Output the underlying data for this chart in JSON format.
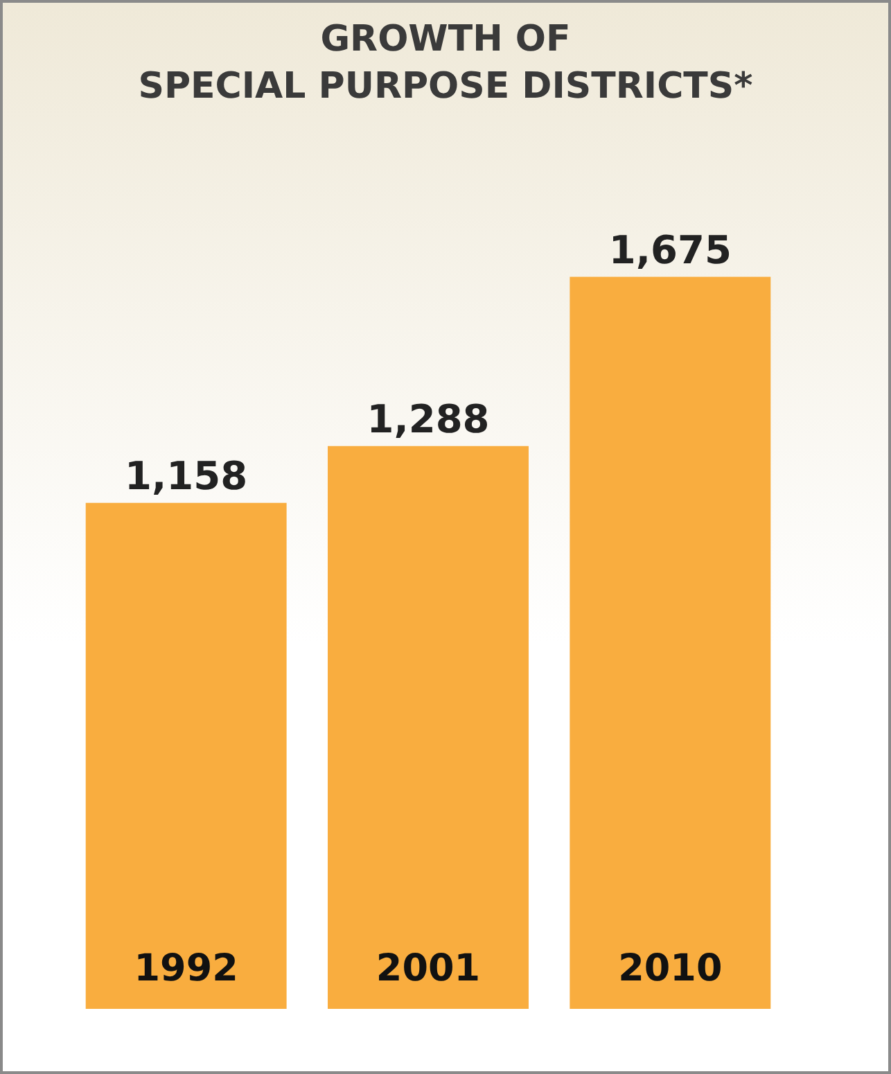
{
  "chart_data": {
    "type": "bar",
    "title": "GROWTH OF\nSPECIAL PURPOSE DISTRICTS*",
    "categories": [
      "1992",
      "2001",
      "2010"
    ],
    "values": [
      1158,
      1288,
      1675
    ],
    "value_labels": [
      "1,158",
      "1,288",
      "1,675"
    ],
    "color": "#f9ad3f",
    "grid": false,
    "legend": false
  }
}
